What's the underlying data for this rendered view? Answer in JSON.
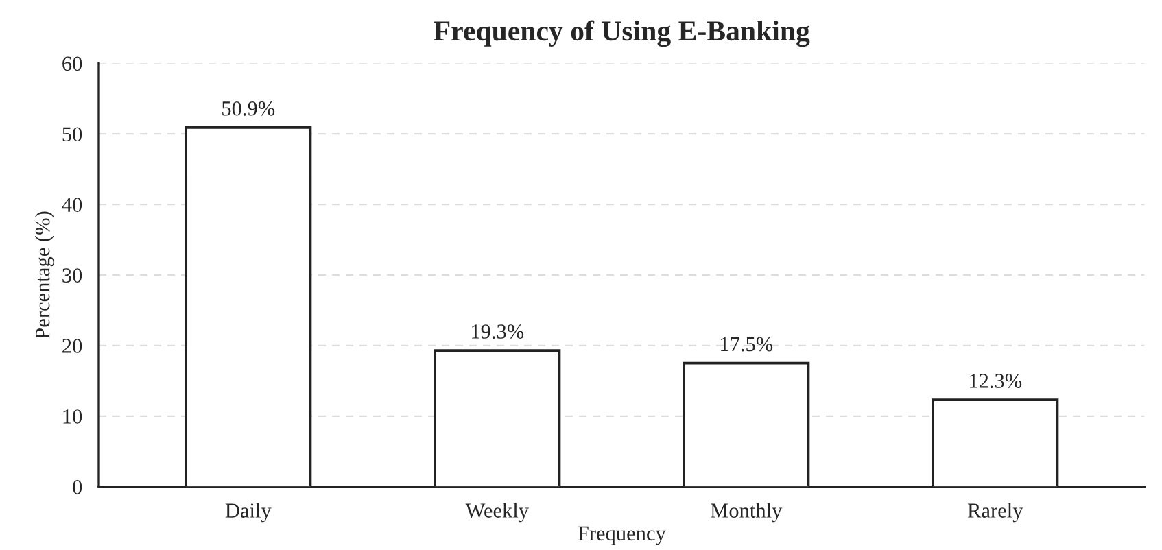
{
  "chart_data": {
    "type": "bar",
    "title": "Frequency of Using E-Banking",
    "xlabel": "Frequency",
    "ylabel": "Percentage (%)",
    "categories": [
      "Daily",
      "Weekly",
      "Monthly",
      "Rarely"
    ],
    "values": [
      50.9,
      19.3,
      17.5,
      12.3
    ],
    "value_labels": [
      "50.9%",
      "19.3%",
      "17.5%",
      "12.3%"
    ],
    "color": "#ffffff",
    "ylim": [
      0,
      60
    ],
    "yticks": [
      0,
      10,
      20,
      30,
      40,
      50,
      60
    ],
    "grid": "y",
    "legend": false
  }
}
